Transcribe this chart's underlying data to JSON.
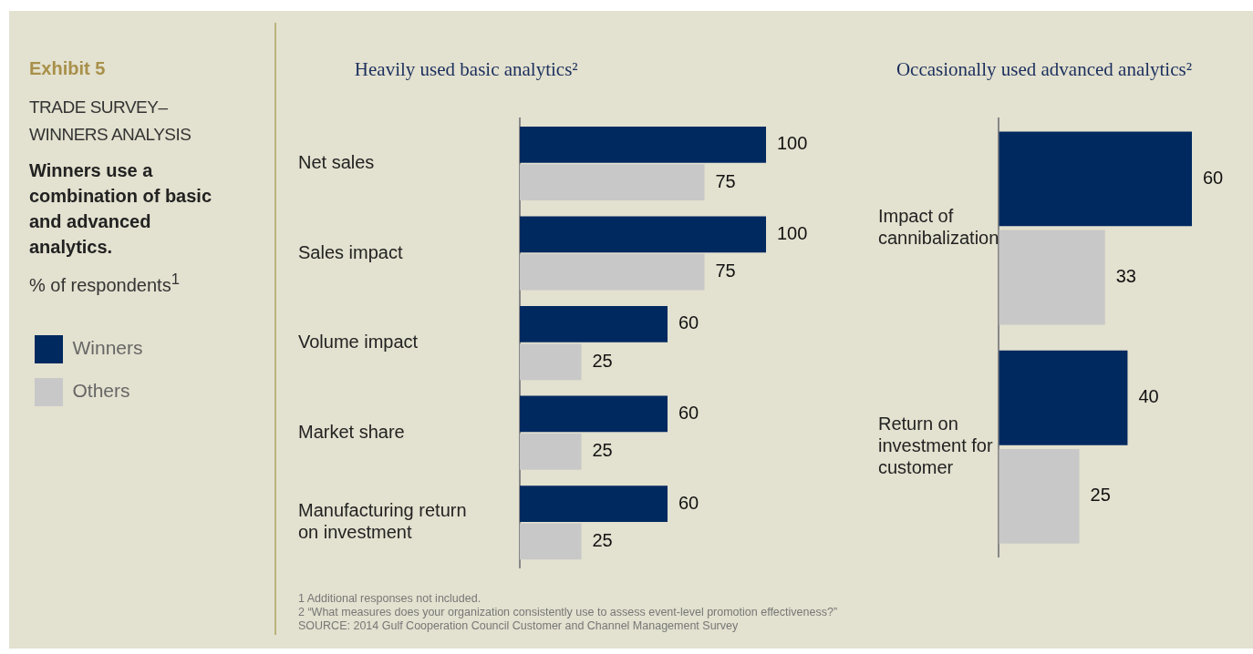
{
  "chart_data": [
    {
      "type": "other",
      "title": "Exhibit 5",
      "subtitle": "TRADE SURVEY–WINNERS ANALYSIS",
      "annotations": [
        "Winners use a combination of basic and advanced analytics.",
        "% of respondents$^{1}$"
      ]
    },
    {
      "type": "bar",
      "orientation": "horizontal",
      "title": "Heavily used basic analytics²",
      "categories": [
        "Net sales",
        "Sales impact",
        "Volume impact",
        "Market share",
        "Manufacturing return on investment"
      ],
      "series": [
        {
          "name": "Winners",
          "color": "#002960",
          "values": [
            100,
            100,
            60,
            60,
            60
          ]
        },
        {
          "name": "Others",
          "color": "#c8c8c8",
          "values": [
            75,
            75,
            25,
            25,
            25
          ]
        }
      ],
      "data_labels": true,
      "legend": "left",
      "annotations": [
        "1 Additional responses not included.",
        "2 “What measures does your organization consistently use to assess event-level promotion effectiveness?”",
        "SOURCE: 2014 Gulf Cooperation Council Customer and Channel Management Survey"
      ]
    },
    {
      "type": "bar",
      "orientation": "horizontal",
      "title": "Occasionally used advanced analytics²",
      "categories": [
        "Impact of cannibalization",
        "Return on investment for customer"
      ],
      "series": [
        {
          "color": "#002960",
          "values": [
            60,
            40
          ]
        },
        {
          "color": "#c8c8c8",
          "values": [
            33,
            25
          ]
        }
      ],
      "data_labels": true
    }
  ]
}
